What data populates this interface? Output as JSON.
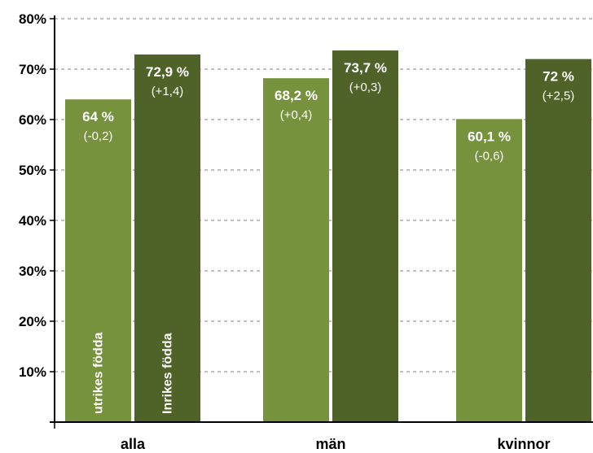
{
  "chart_data": {
    "type": "bar",
    "categories": [
      "alla",
      "män",
      "kvinnor"
    ],
    "series": [
      {
        "name": "utrikes födda",
        "values": [
          64,
          68.2,
          60.1
        ],
        "value_labels": [
          "64 %",
          "68,2 %",
          "60,1 %"
        ],
        "change_labels": [
          "(-0,2)",
          "(+0,4)",
          "(-0,6)"
        ],
        "color": "#76923c"
      },
      {
        "name": "Inrikes födda",
        "values": [
          72.9,
          73.7,
          72
        ],
        "value_labels": [
          "72,9 %",
          "73,7 %",
          "72 %"
        ],
        "change_labels": [
          "(+1,4)",
          "(+0,3)",
          "(+2,5)"
        ],
        "color": "#4f6228"
      }
    ],
    "ylim": [
      0,
      80
    ],
    "yticks": [
      10,
      20,
      30,
      40,
      50,
      60,
      70,
      80
    ],
    "ytick_labels": [
      "10%",
      "20%",
      "30%",
      "40%",
      "50%",
      "60%",
      "70%",
      "80%"
    ],
    "grid": true,
    "grid_style": "dashed",
    "legend": "inside-bars"
  }
}
